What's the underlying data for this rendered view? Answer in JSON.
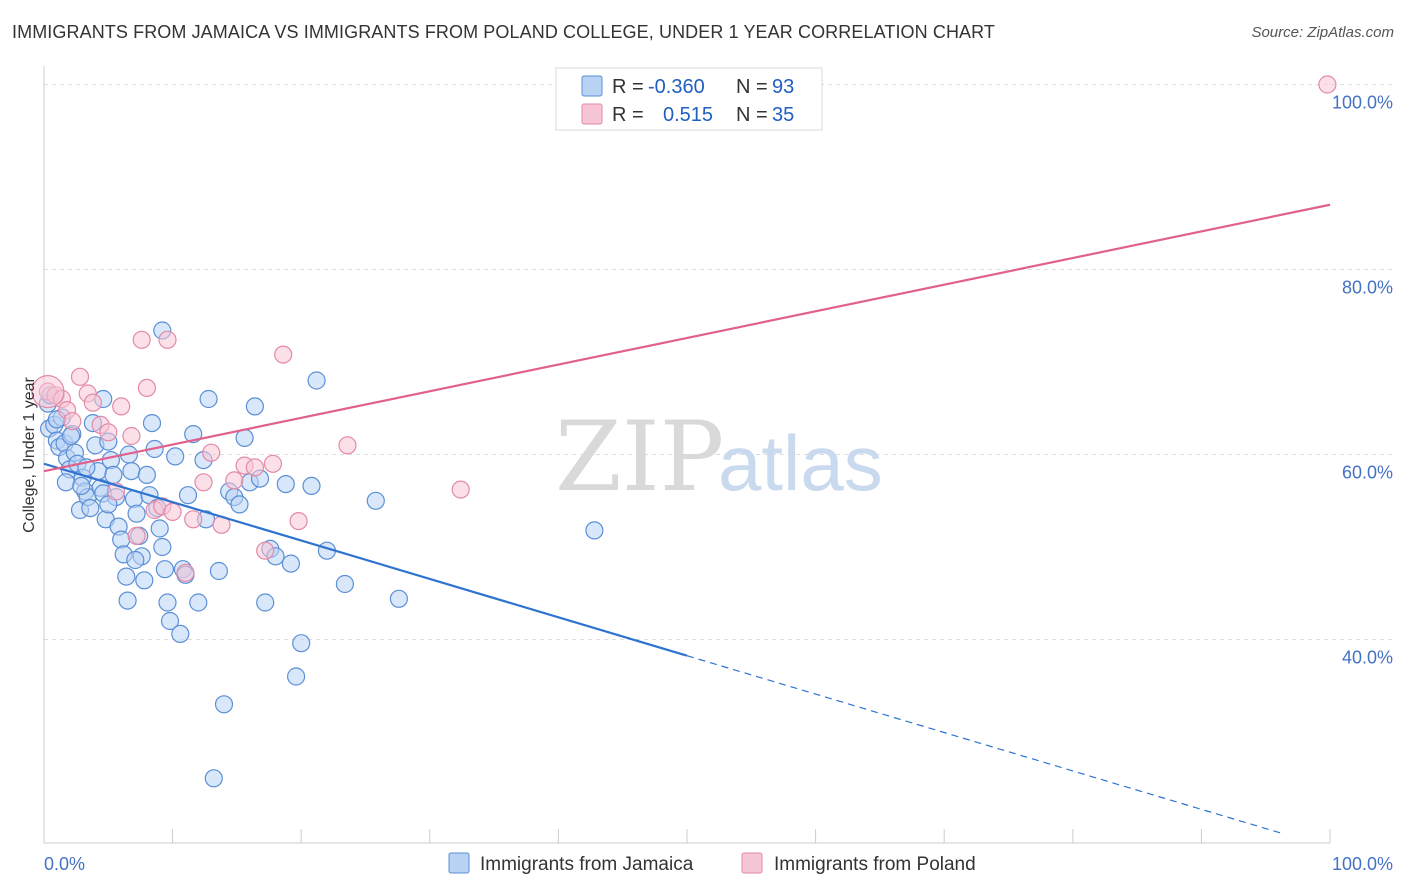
{
  "title": "IMMIGRANTS FROM JAMAICA VS IMMIGRANTS FROM POLAND COLLEGE, UNDER 1 YEAR CORRELATION CHART",
  "source": "Source: ZipAtlas.com",
  "watermark": {
    "zip": "ZIP",
    "atlas": "atlas"
  },
  "legend_box": {
    "rows": [
      {
        "r_label": "R =",
        "r_value": "-0.360",
        "n_label": "N =",
        "n_value": "93"
      },
      {
        "r_label": "R =",
        "r_value": "0.515",
        "n_label": "N =",
        "n_value": "35"
      }
    ]
  },
  "colors": {
    "jamaica_fill": "#b9d3f5",
    "jamaica_stroke": "#5b8fd6",
    "jamaica_line": "#2f73d0",
    "poland_fill": "#f7c6d6",
    "poland_stroke": "#e38aa8",
    "poland_line": "#e0618c",
    "grid": "#dddddd",
    "tick_text": "#4472c4"
  },
  "chart_data": {
    "type": "scatter",
    "title": "IMMIGRANTS FROM JAMAICA VS IMMIGRANTS FROM POLAND COLLEGE, UNDER 1 YEAR CORRELATION CHART",
    "ylabel": "College, Under 1 year",
    "xlabel": "",
    "x_tick_labels": [
      "0.0%",
      "100.0%"
    ],
    "y_tick_labels": [
      "100.0%",
      "80.0%",
      "60.0%",
      "40.0%"
    ],
    "y_ticks": [
      100,
      80,
      60,
      40
    ],
    "xlim": [
      0,
      100
    ],
    "ylim": [
      18,
      102
    ],
    "series": [
      {
        "name": "Immigrants from Jamaica",
        "color": "#5b8fd6",
        "r": -0.36,
        "n": 93,
        "trend": {
          "x0": 0,
          "y0": 59.0,
          "x1": 100,
          "y1": 17.5,
          "solid_until": 50
        },
        "points": [
          [
            0.3,
            65.5
          ],
          [
            0.4,
            62.8
          ],
          [
            0.5,
            66.4
          ],
          [
            0.8,
            63.2
          ],
          [
            1.0,
            61.5
          ],
          [
            1.2,
            60.8
          ],
          [
            1.4,
            64.0
          ],
          [
            1.6,
            61.2
          ],
          [
            1.8,
            59.6
          ],
          [
            2.0,
            58.4
          ],
          [
            1.7,
            57.0
          ],
          [
            2.2,
            62.2
          ],
          [
            2.4,
            60.2
          ],
          [
            2.6,
            59.0
          ],
          [
            2.8,
            54.0
          ],
          [
            3.0,
            57.5
          ],
          [
            3.2,
            56.0
          ],
          [
            3.4,
            55.4
          ],
          [
            3.6,
            54.2
          ],
          [
            3.8,
            63.4
          ],
          [
            4.0,
            61.0
          ],
          [
            4.2,
            58.2
          ],
          [
            4.4,
            56.4
          ],
          [
            4.6,
            55.8
          ],
          [
            4.8,
            53.0
          ],
          [
            5.0,
            61.4
          ],
          [
            5.2,
            59.4
          ],
          [
            5.4,
            57.8
          ],
          [
            5.6,
            55.4
          ],
          [
            5.8,
            52.2
          ],
          [
            6.0,
            50.8
          ],
          [
            6.2,
            49.2
          ],
          [
            6.4,
            46.8
          ],
          [
            6.6,
            60.0
          ],
          [
            6.8,
            58.2
          ],
          [
            7.0,
            55.2
          ],
          [
            7.2,
            53.6
          ],
          [
            7.4,
            51.2
          ],
          [
            7.6,
            49.0
          ],
          [
            7.8,
            46.4
          ],
          [
            8.0,
            57.8
          ],
          [
            8.2,
            55.6
          ],
          [
            8.4,
            63.4
          ],
          [
            8.6,
            60.6
          ],
          [
            8.8,
            54.2
          ],
          [
            9.0,
            52.0
          ],
          [
            9.2,
            50.0
          ],
          [
            9.4,
            47.6
          ],
          [
            9.6,
            44.0
          ],
          [
            9.8,
            42.0
          ],
          [
            10.2,
            59.8
          ],
          [
            10.6,
            40.6
          ],
          [
            10.8,
            47.6
          ],
          [
            11.2,
            55.6
          ],
          [
            11.6,
            62.2
          ],
          [
            12.0,
            44.0
          ],
          [
            12.4,
            59.4
          ],
          [
            12.6,
            53.0
          ],
          [
            12.8,
            66.0
          ],
          [
            13.2,
            25.0
          ],
          [
            13.6,
            47.4
          ],
          [
            14.0,
            33.0
          ],
          [
            14.4,
            56.0
          ],
          [
            14.8,
            55.4
          ],
          [
            15.2,
            54.6
          ],
          [
            15.6,
            61.8
          ],
          [
            16.0,
            57.0
          ],
          [
            16.4,
            65.2
          ],
          [
            16.8,
            57.4
          ],
          [
            17.2,
            44.0
          ],
          [
            17.6,
            49.8
          ],
          [
            18.0,
            49.0
          ],
          [
            18.8,
            56.8
          ],
          [
            19.2,
            48.2
          ],
          [
            19.6,
            36.0
          ],
          [
            20.0,
            39.6
          ],
          [
            20.8,
            56.6
          ],
          [
            21.2,
            68.0
          ],
          [
            22.0,
            49.6
          ],
          [
            23.4,
            46.0
          ],
          [
            25.8,
            55.0
          ],
          [
            27.6,
            44.4
          ],
          [
            42.8,
            51.8
          ],
          [
            9.2,
            73.4
          ],
          [
            4.6,
            66.0
          ],
          [
            1.0,
            63.8
          ],
          [
            2.1,
            62.0
          ],
          [
            2.9,
            56.6
          ],
          [
            3.3,
            58.6
          ],
          [
            5.0,
            54.6
          ],
          [
            6.5,
            44.2
          ],
          [
            11.0,
            47.0
          ],
          [
            7.1,
            48.6
          ]
        ]
      },
      {
        "name": "Immigrants from Poland",
        "color": "#e38aa8",
        "r": 0.515,
        "n": 35,
        "trend": {
          "x0": 0,
          "y0": 58.2,
          "x1": 100,
          "y1": 87.0,
          "solid_until": 100
        },
        "points": [
          [
            0.3,
            66.8
          ],
          [
            0.9,
            66.4
          ],
          [
            1.4,
            66.0
          ],
          [
            1.8,
            64.8
          ],
          [
            2.2,
            63.6
          ],
          [
            2.8,
            68.4
          ],
          [
            3.4,
            66.6
          ],
          [
            3.8,
            65.6
          ],
          [
            4.4,
            63.2
          ],
          [
            5.0,
            62.4
          ],
          [
            5.6,
            56.0
          ],
          [
            6.0,
            65.2
          ],
          [
            6.8,
            62.0
          ],
          [
            7.2,
            51.2
          ],
          [
            7.6,
            72.4
          ],
          [
            8.0,
            67.2
          ],
          [
            8.6,
            54.0
          ],
          [
            9.2,
            54.4
          ],
          [
            9.6,
            72.4
          ],
          [
            10.0,
            53.8
          ],
          [
            11.0,
            47.2
          ],
          [
            11.6,
            53.0
          ],
          [
            12.4,
            57.0
          ],
          [
            13.0,
            60.2
          ],
          [
            13.8,
            52.4
          ],
          [
            14.8,
            57.2
          ],
          [
            15.6,
            58.8
          ],
          [
            16.4,
            58.6
          ],
          [
            17.2,
            49.6
          ],
          [
            17.8,
            59.0
          ],
          [
            18.6,
            70.8
          ],
          [
            19.8,
            52.8
          ],
          [
            23.6,
            61.0
          ],
          [
            32.4,
            56.2
          ],
          [
            99.8,
            100.0
          ]
        ]
      }
    ]
  },
  "bottom_legend": [
    {
      "label": "Immigrants from Jamaica"
    },
    {
      "label": "Immigrants from Poland"
    }
  ]
}
